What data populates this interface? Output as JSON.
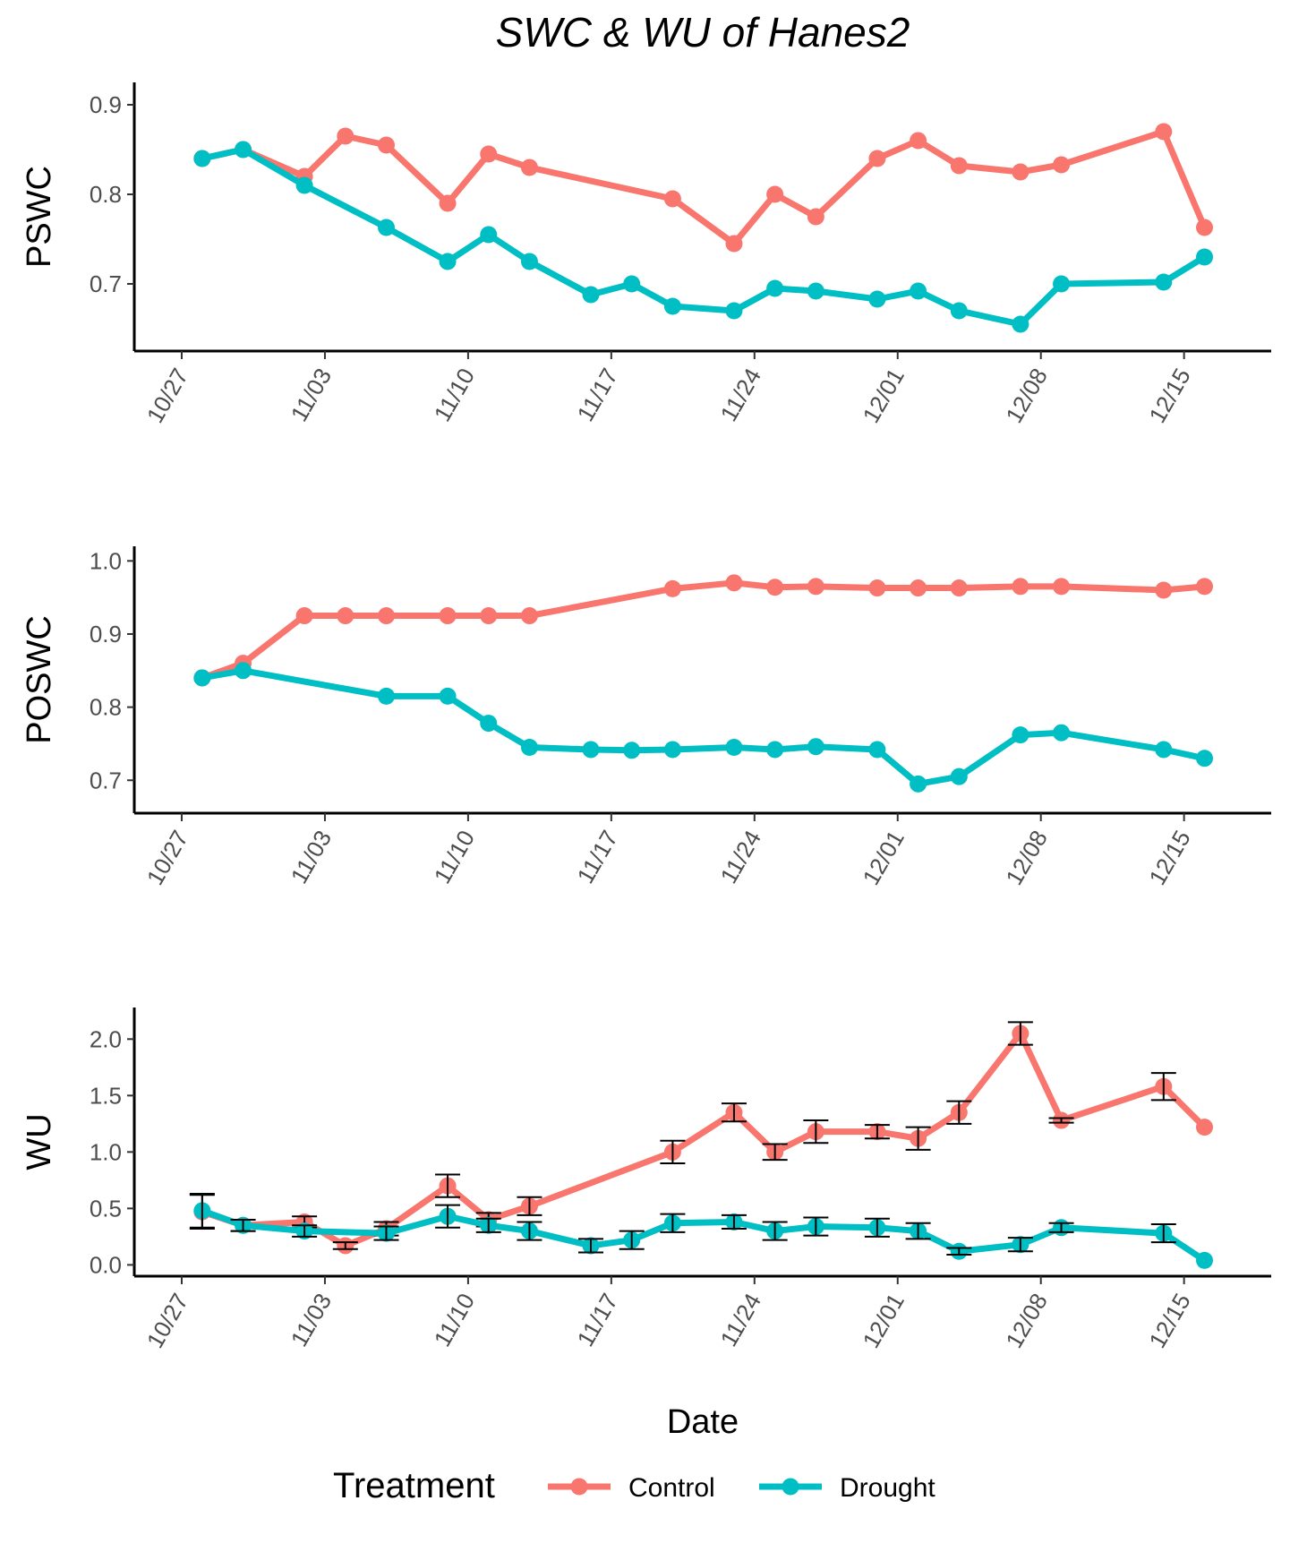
{
  "title": "SWC & WU  of Hanes2",
  "legend": {
    "title": "Treatment",
    "entries": [
      {
        "name": "Control",
        "color": "#F8766D"
      },
      {
        "name": "Drought",
        "color": "#00BFC4"
      }
    ]
  },
  "chart_data": [
    {
      "type": "line",
      "ylabel": "PSWC",
      "xlabel": "",
      "x_ticks": [
        "10/27",
        "11/03",
        "11/10",
        "11/17",
        "11/24",
        "12/01",
        "12/08",
        "12/15"
      ],
      "yticks": [
        "0.7",
        "0.8",
        "0.9"
      ],
      "ylim": [
        0.625,
        0.925
      ],
      "grid": false,
      "series": [
        {
          "name": "Control",
          "color": "#F8766D",
          "x": [
            "10/28",
            "10/30",
            "11/02",
            "11/04",
            "11/06",
            "11/09",
            "11/11",
            "11/13",
            "11/20",
            "11/23",
            "11/25",
            "11/27",
            "11/30",
            "12/02",
            "12/04",
            "12/07",
            "12/09",
            "12/14",
            "12/16"
          ],
          "y": [
            0.84,
            0.85,
            0.82,
            0.865,
            0.855,
            0.79,
            0.845,
            0.83,
            0.795,
            0.745,
            0.8,
            0.775,
            0.84,
            0.86,
            0.832,
            0.825,
            0.833,
            0.87,
            0.763
          ]
        },
        {
          "name": "Drought",
          "color": "#00BFC4",
          "x": [
            "10/28",
            "10/30",
            "11/02",
            "11/06",
            "11/09",
            "11/11",
            "11/13",
            "11/16",
            "11/18",
            "11/20",
            "11/23",
            "11/25",
            "11/27",
            "11/30",
            "12/02",
            "12/04",
            "12/07",
            "12/09",
            "12/14",
            "12/16"
          ],
          "y": [
            0.84,
            0.85,
            0.81,
            0.763,
            0.725,
            0.755,
            0.725,
            0.688,
            0.7,
            0.675,
            0.67,
            0.695,
            0.692,
            0.683,
            0.692,
            0.67,
            0.655,
            0.7,
            0.702,
            0.73
          ]
        }
      ]
    },
    {
      "type": "line",
      "ylabel": "POSWC",
      "xlabel": "",
      "x_ticks": [
        "10/27",
        "11/03",
        "11/10",
        "11/17",
        "11/24",
        "12/01",
        "12/08",
        "12/15"
      ],
      "yticks": [
        "0.7",
        "0.8",
        "0.9",
        "1.0"
      ],
      "ylim": [
        0.655,
        1.02
      ],
      "grid": false,
      "series": [
        {
          "name": "Control",
          "color": "#F8766D",
          "x": [
            "10/28",
            "10/30",
            "11/02",
            "11/04",
            "11/06",
            "11/09",
            "11/11",
            "11/13",
            "11/20",
            "11/23",
            "11/25",
            "11/27",
            "11/30",
            "12/02",
            "12/04",
            "12/07",
            "12/09",
            "12/14",
            "12/16"
          ],
          "y": [
            0.84,
            0.86,
            0.925,
            0.925,
            0.925,
            0.925,
            0.925,
            0.925,
            0.962,
            0.97,
            0.964,
            0.965,
            0.963,
            0.963,
            0.963,
            0.965,
            0.965,
            0.96,
            0.965
          ]
        },
        {
          "name": "Drought",
          "color": "#00BFC4",
          "x": [
            "10/28",
            "10/30",
            "11/06",
            "11/09",
            "11/11",
            "11/13",
            "11/16",
            "11/18",
            "11/20",
            "11/23",
            "11/25",
            "11/27",
            "11/30",
            "12/02",
            "12/04",
            "12/07",
            "12/09",
            "12/14",
            "12/16"
          ],
          "y": [
            0.84,
            0.85,
            0.815,
            0.815,
            0.778,
            0.745,
            0.742,
            0.741,
            0.742,
            0.745,
            0.742,
            0.746,
            0.742,
            0.695,
            0.705,
            0.762,
            0.765,
            0.742,
            0.73
          ]
        }
      ]
    },
    {
      "type": "line",
      "ylabel": "WU",
      "xlabel": "Date",
      "x_ticks": [
        "10/27",
        "11/03",
        "11/10",
        "11/17",
        "11/24",
        "12/01",
        "12/08",
        "12/15"
      ],
      "yticks": [
        "0.0",
        "0.5",
        "1.0",
        "1.5",
        "2.0"
      ],
      "ylim": [
        -0.1,
        2.28
      ],
      "grid": false,
      "error_bars": true,
      "series": [
        {
          "name": "Control",
          "color": "#F8766D",
          "x": [
            "10/28",
            "10/30",
            "11/02",
            "11/04",
            "11/06",
            "11/09",
            "11/11",
            "11/13",
            "11/20",
            "11/23",
            "11/25",
            "11/27",
            "11/30",
            "12/02",
            "12/04",
            "12/07",
            "12/09",
            "12/14",
            "12/16"
          ],
          "y": [
            0.47,
            0.35,
            0.38,
            0.17,
            0.32,
            0.7,
            0.4,
            0.52,
            1.0,
            1.35,
            1.0,
            1.18,
            1.18,
            1.12,
            1.35,
            2.05,
            1.28,
            1.58,
            1.22
          ],
          "err": [
            0.15,
            0.05,
            0.05,
            0.03,
            0.06,
            0.1,
            0.06,
            0.08,
            0.1,
            0.08,
            0.07,
            0.1,
            0.06,
            0.1,
            0.1,
            0.1,
            0.02,
            0.12,
            0.0
          ]
        },
        {
          "name": "Drought",
          "color": "#00BFC4",
          "x": [
            "10/28",
            "10/30",
            "11/02",
            "11/06",
            "11/09",
            "11/11",
            "11/13",
            "11/16",
            "11/18",
            "11/20",
            "11/23",
            "11/25",
            "11/27",
            "11/30",
            "12/02",
            "12/04",
            "12/07",
            "12/09",
            "12/14",
            "12/16"
          ],
          "y": [
            0.48,
            0.35,
            0.3,
            0.28,
            0.43,
            0.35,
            0.3,
            0.17,
            0.22,
            0.37,
            0.38,
            0.3,
            0.34,
            0.33,
            0.3,
            0.12,
            0.18,
            0.33,
            0.28,
            0.04
          ],
          "err": [
            0.15,
            0.05,
            0.05,
            0.06,
            0.1,
            0.06,
            0.08,
            0.06,
            0.08,
            0.08,
            0.06,
            0.08,
            0.08,
            0.08,
            0.07,
            0.03,
            0.06,
            0.04,
            0.08,
            0.0
          ]
        }
      ]
    }
  ]
}
